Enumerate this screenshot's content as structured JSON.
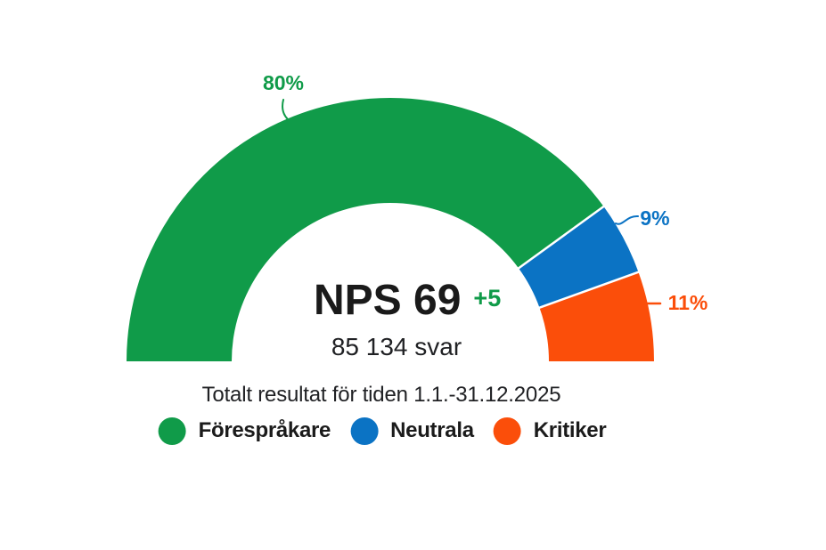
{
  "chart_data": {
    "type": "donut",
    "variant": "half-donut-gauge",
    "title": "Totalt resultat för tiden 1.1.-31.12.2025",
    "center": {
      "score_label": "NPS 69",
      "delta_label": "+5",
      "responses_label": "85 134 svar"
    },
    "slices": [
      {
        "key": "promoters",
        "name": "Förespråkare",
        "value_pct": 80,
        "label": "80%",
        "color": "#109b49"
      },
      {
        "key": "neutrals",
        "name": "Neutrala",
        "value_pct": 9,
        "label": "9%",
        "color": "#0b73c4"
      },
      {
        "key": "critics",
        "name": "Kritiker",
        "value_pct": 11,
        "label": "11%",
        "color": "#fb4e0a"
      }
    ],
    "delta_color": "#109b49",
    "background": "#ffffff",
    "legend_position": "bottom",
    "gauge_range_deg": 180
  }
}
